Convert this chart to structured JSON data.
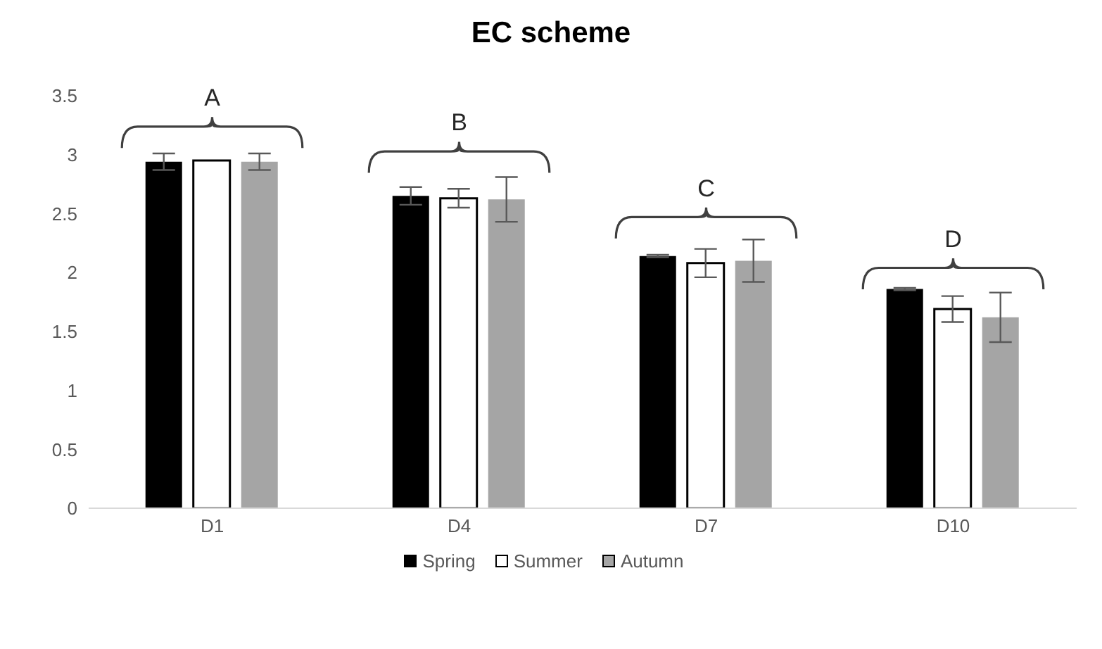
{
  "chart_data": {
    "type": "bar",
    "title": "EC scheme",
    "categories": [
      "D1",
      "D4",
      "D7",
      "D10"
    ],
    "series": [
      {
        "name": "Spring",
        "color": "#000000",
        "values": [
          2.94,
          2.65,
          2.14,
          1.86
        ],
        "errors": [
          0.07,
          0.075,
          0.01,
          0.01
        ]
      },
      {
        "name": "Summer",
        "color": "#ffffff",
        "values": [
          2.95,
          2.63,
          2.08,
          1.69
        ],
        "errors": [
          null,
          0.08,
          0.12,
          0.11
        ]
      },
      {
        "name": "Autumn",
        "color": "#a5a5a5",
        "values": [
          2.94,
          2.62,
          2.1,
          1.62
        ],
        "errors": [
          0.07,
          0.19,
          0.18,
          0.21
        ]
      }
    ],
    "ylim": [
      0,
      3.5
    ],
    "yticks": [
      0,
      0.5,
      1,
      1.5,
      2,
      2.5,
      3,
      3.5
    ],
    "legend": "bottom",
    "annotations": [
      "A",
      "B",
      "C",
      "D"
    ]
  }
}
